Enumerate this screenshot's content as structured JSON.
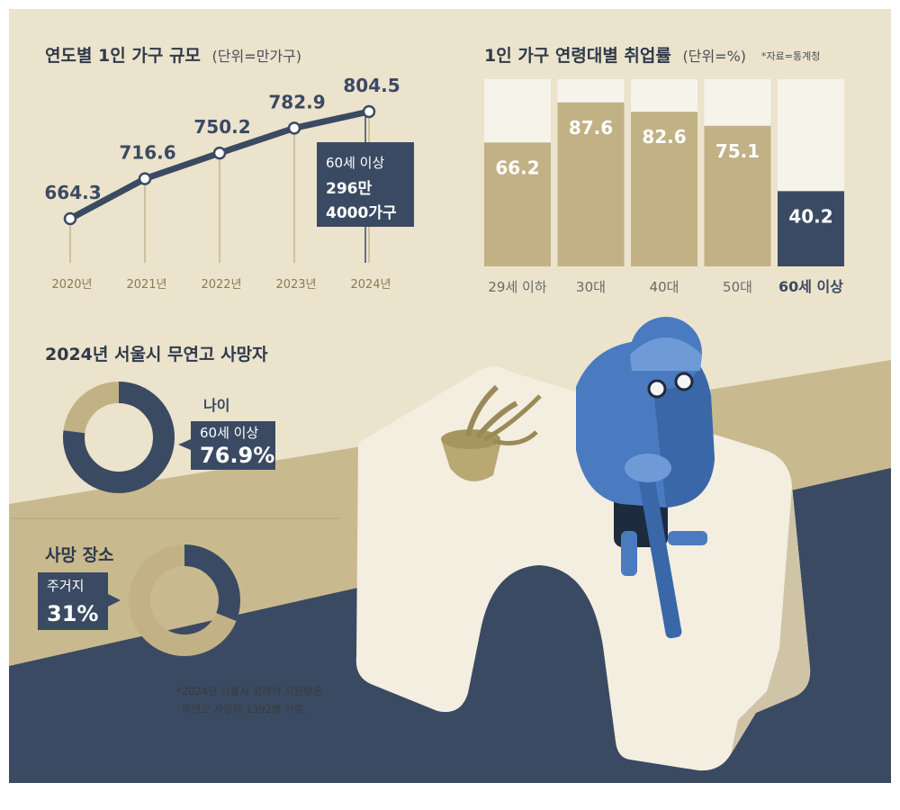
{
  "colors": {
    "navy": "#3b4a63",
    "tan": "#c2b184",
    "cream_light": "#f6f3ea",
    "background": "#ebe3cc",
    "person_blue": "#4a7bc0"
  },
  "chart_data": [
    {
      "type": "line",
      "title": "연도별 1인 가구 규모",
      "unit": "(단위=만가구)",
      "categories": [
        "2020년",
        "2021년",
        "2022년",
        "2023년",
        "2024년"
      ],
      "values": [
        664.3,
        716.6,
        750.2,
        782.9,
        804.5
      ],
      "value_labels": [
        "664.3",
        "716.6",
        "750.2",
        "782.9",
        "804.5"
      ],
      "grid": false,
      "annotation": {
        "line1": "60세 이상",
        "line2": "296만",
        "line3": "4000가구"
      }
    },
    {
      "type": "bar",
      "title": "1인 가구 연령대별 취업률",
      "unit": "(단위=%)",
      "source": "*자료=통계청",
      "categories": [
        "29세 이하",
        "30대",
        "40대",
        "50대",
        "60세 이상"
      ],
      "values": [
        66.2,
        87.6,
        82.6,
        75.1,
        40.2
      ],
      "value_labels": [
        "66.2",
        "87.6",
        "82.6",
        "75.1",
        "40.2"
      ],
      "ylim": [
        0,
        100
      ],
      "highlight": "60세 이상"
    },
    {
      "type": "pie",
      "title": "2024년 서울시 무연고 사망자",
      "label": "나이",
      "slice_label": "60세 이상",
      "value": 76.9,
      "value_label": "76.9%"
    },
    {
      "type": "pie",
      "title": "사망 장소",
      "slice_label": "주거지",
      "value": 31,
      "value_label": "31%"
    }
  ],
  "footnote": {
    "line1": "*2024년 서울시 장례식 지원받은",
    "line2": "무연고 사망자 1392명 기준."
  }
}
